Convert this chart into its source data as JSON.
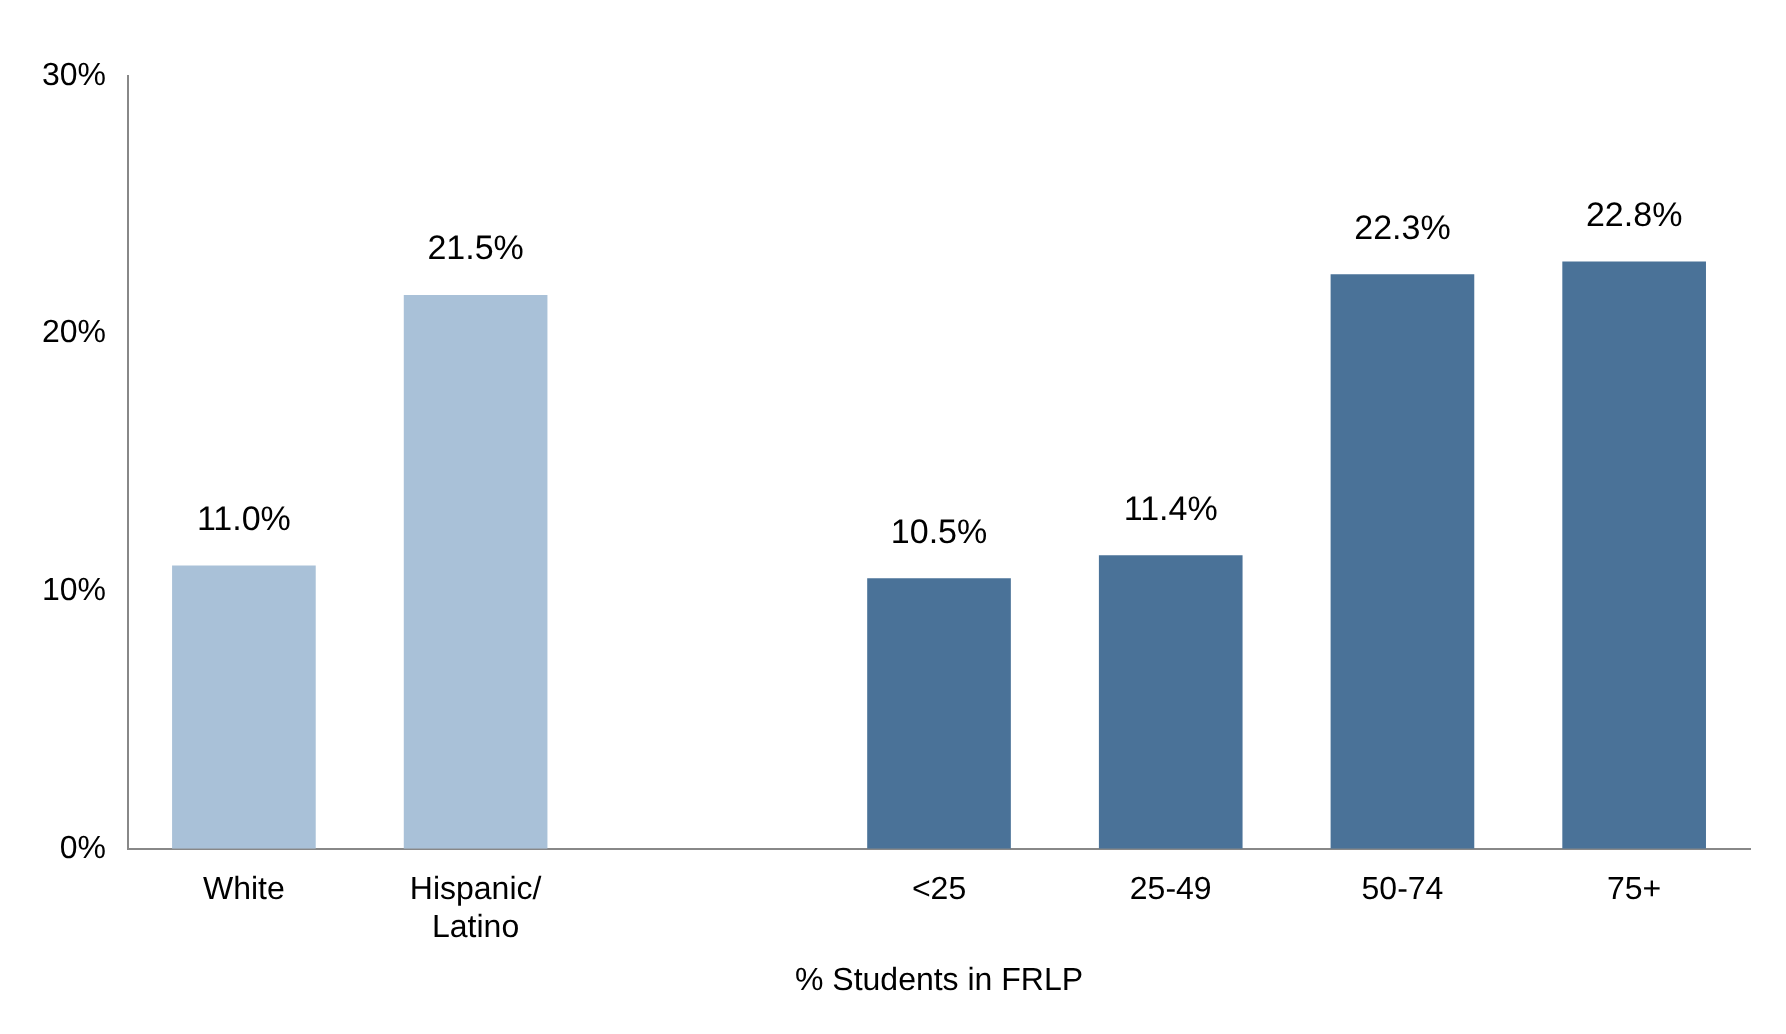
{
  "chart_data": {
    "type": "bar",
    "xlabel": "% Students in FRLP",
    "categories": [
      "White",
      "Hispanic/\nLatino",
      null,
      "<25",
      "25-49",
      "50-74",
      "75+"
    ],
    "values": [
      11.0,
      21.5,
      null,
      10.5,
      11.4,
      22.3,
      22.8
    ],
    "colors": [
      "#a9c1d8",
      "#a9c1d8",
      null,
      "#4a7298",
      "#4a7298",
      "#4a7298",
      "#4a7298"
    ],
    "value_labels": [
      "11.0%",
      "21.5%",
      null,
      "10.5%",
      "11.4%",
      "22.3%",
      "22.8%"
    ],
    "ylim": [
      0,
      30
    ],
    "yticks": [
      {
        "value": 0,
        "label": "0%"
      },
      {
        "value": 10,
        "label": "10%"
      },
      {
        "value": 20,
        "label": "20%"
      },
      {
        "value": 30,
        "label": "30%"
      }
    ],
    "grid": false,
    "legend": false
  }
}
